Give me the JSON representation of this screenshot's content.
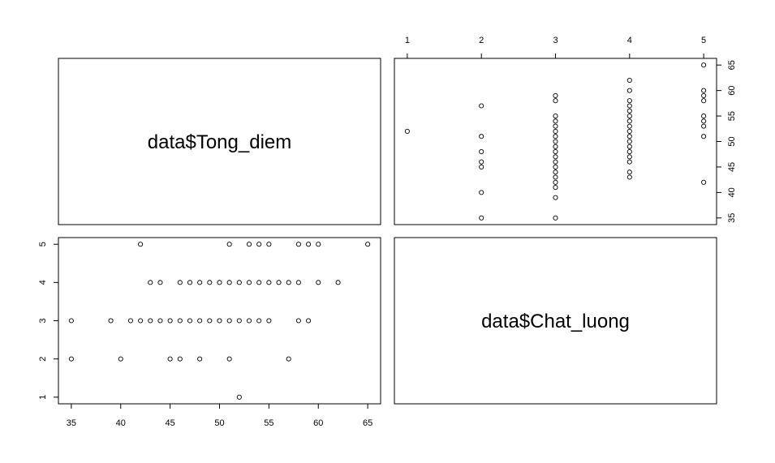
{
  "chart_data": {
    "type": "scatter",
    "variables": [
      "data$Tong_diem",
      "data$Chat_luong"
    ],
    "axes": {
      "tong_diem": {
        "range": [
          35,
          65
        ],
        "ticks": [
          35,
          40,
          45,
          50,
          55,
          60,
          65
        ]
      },
      "chat_luong": {
        "range": [
          1,
          5
        ],
        "ticks": [
          1,
          2,
          3,
          4,
          5
        ]
      }
    },
    "points": [
      [
        52,
        1
      ],
      [
        35,
        2
      ],
      [
        40,
        2
      ],
      [
        45,
        2
      ],
      [
        46,
        2
      ],
      [
        48,
        2
      ],
      [
        51,
        2
      ],
      [
        57,
        2
      ],
      [
        35,
        3
      ],
      [
        39,
        3
      ],
      [
        41,
        3
      ],
      [
        42,
        3
      ],
      [
        43,
        3
      ],
      [
        44,
        3
      ],
      [
        45,
        3
      ],
      [
        46,
        3
      ],
      [
        47,
        3
      ],
      [
        48,
        3
      ],
      [
        49,
        3
      ],
      [
        50,
        3
      ],
      [
        51,
        3
      ],
      [
        52,
        3
      ],
      [
        53,
        3
      ],
      [
        54,
        3
      ],
      [
        55,
        3
      ],
      [
        58,
        3
      ],
      [
        59,
        3
      ],
      [
        43,
        4
      ],
      [
        44,
        4
      ],
      [
        46,
        4
      ],
      [
        47,
        4
      ],
      [
        48,
        4
      ],
      [
        49,
        4
      ],
      [
        50,
        4
      ],
      [
        51,
        4
      ],
      [
        52,
        4
      ],
      [
        53,
        4
      ],
      [
        54,
        4
      ],
      [
        55,
        4
      ],
      [
        56,
        4
      ],
      [
        57,
        4
      ],
      [
        58,
        4
      ],
      [
        60,
        4
      ],
      [
        62,
        4
      ],
      [
        42,
        5
      ],
      [
        51,
        5
      ],
      [
        53,
        5
      ],
      [
        54,
        5
      ],
      [
        55,
        5
      ],
      [
        58,
        5
      ],
      [
        59,
        5
      ],
      [
        60,
        5
      ],
      [
        65,
        5
      ]
    ],
    "grid": false,
    "legend": "none"
  }
}
